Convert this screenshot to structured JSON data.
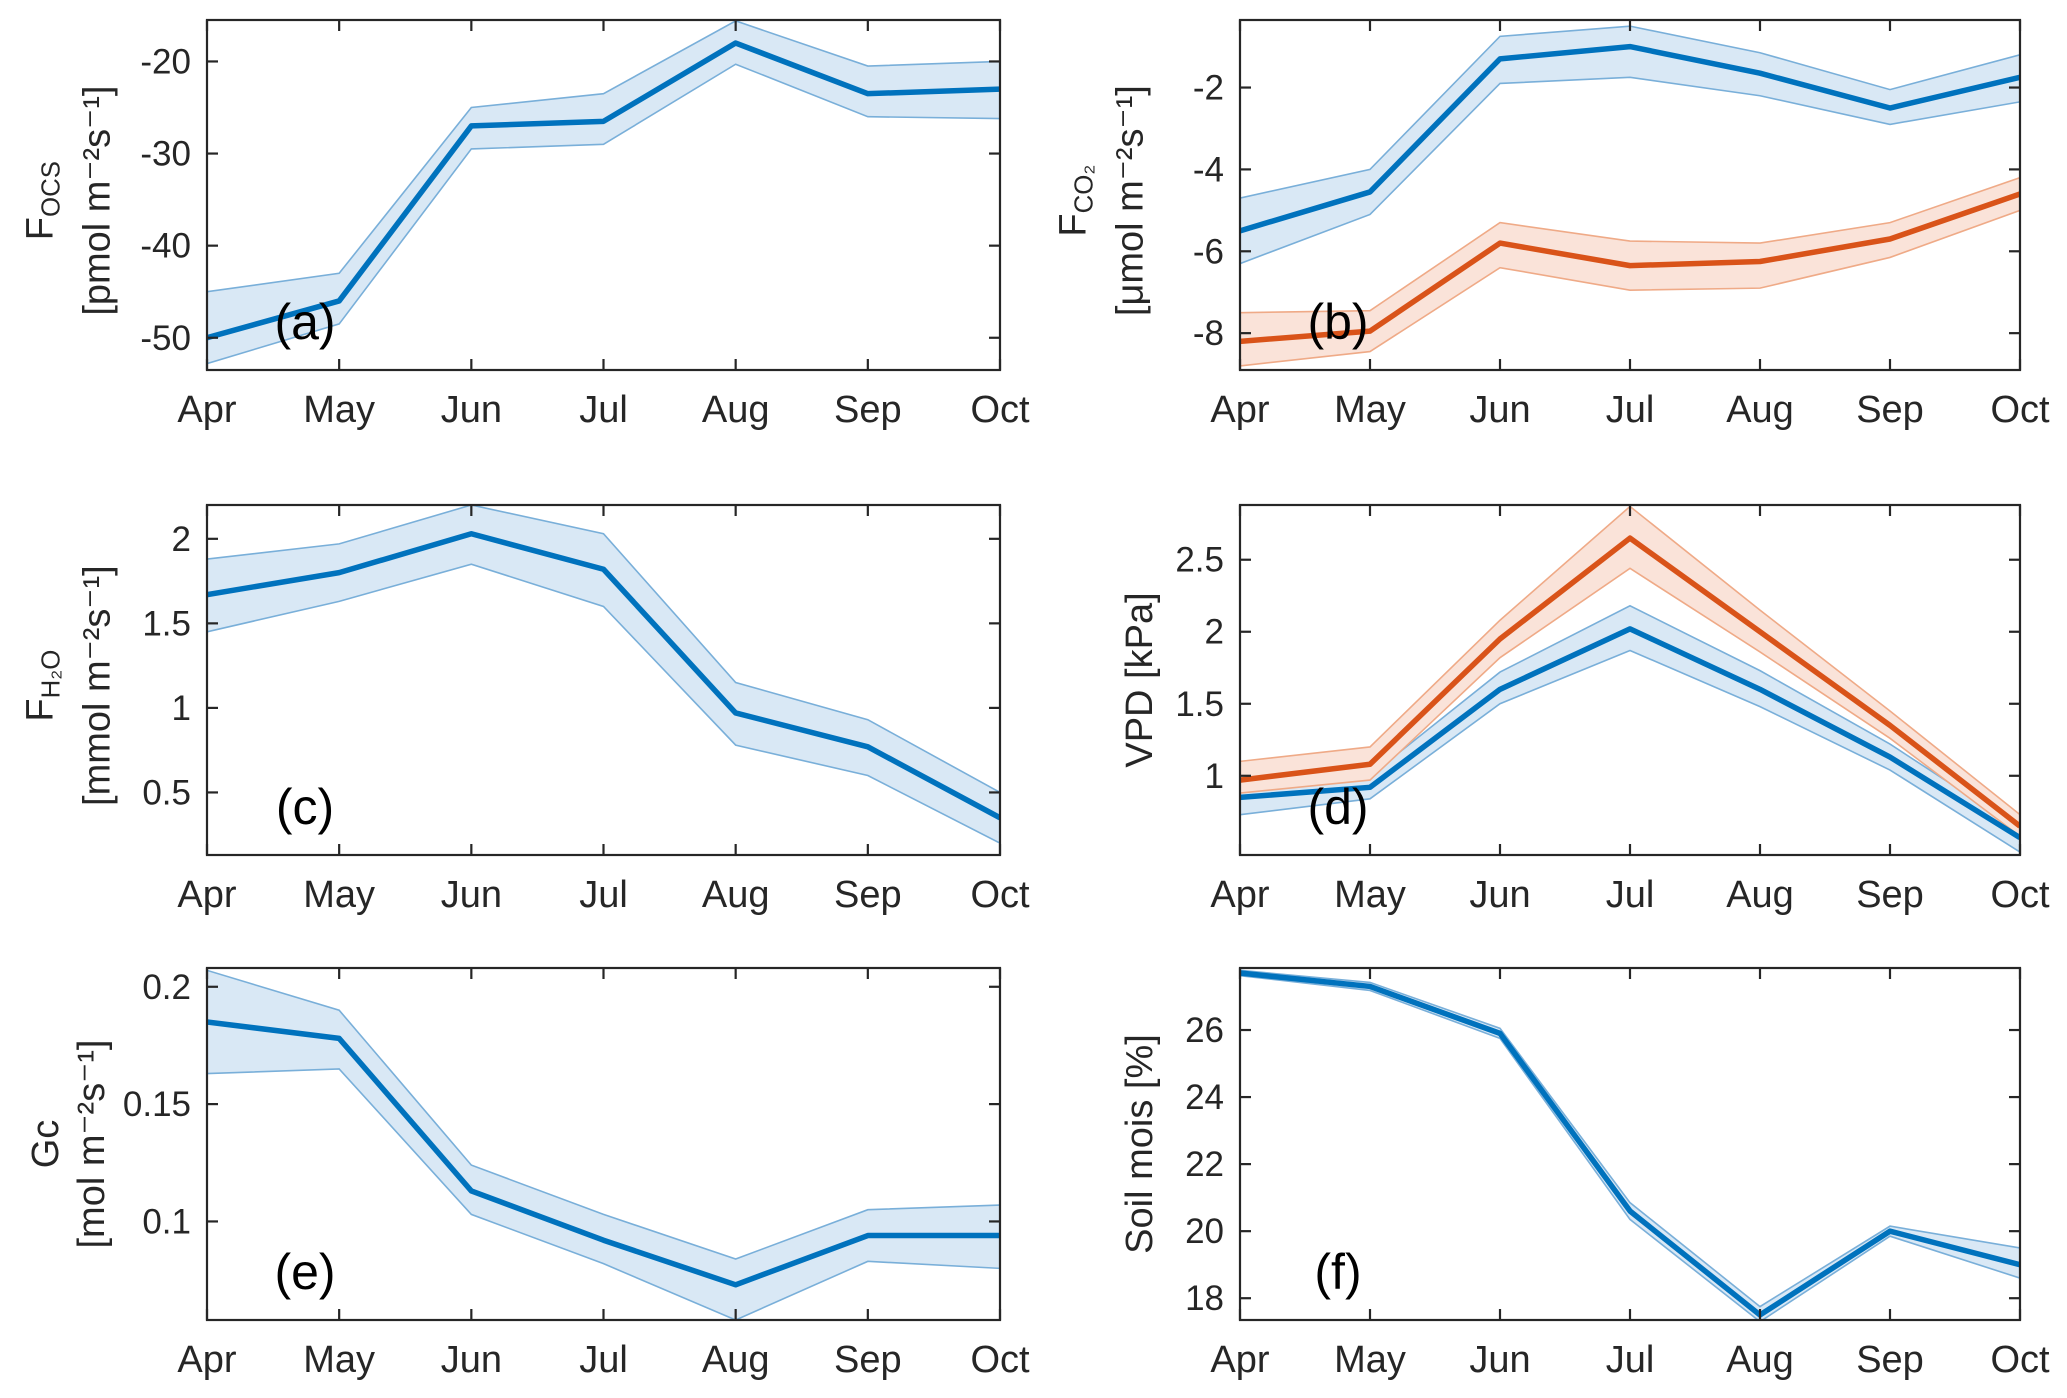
{
  "figure": {
    "type": "multi-panel-line-chart",
    "months": [
      "Apr",
      "May",
      "Jun",
      "Jul",
      "Aug",
      "Sep",
      "Oct"
    ],
    "colors": {
      "blue": "#0072BD",
      "blue_fill": "#D9E8F5",
      "blue_edge": "#79AFD9",
      "orange": "#D95319",
      "orange_fill": "#FAE3D9",
      "orange_edge": "#EFAA87",
      "axis": "#262626",
      "tick_label": "#262626"
    }
  },
  "chart_data": [
    {
      "id": "a",
      "type": "line",
      "panel_label": "(a)",
      "x": [
        "Apr",
        "May",
        "Jun",
        "Jul",
        "Aug",
        "Sep",
        "Oct"
      ],
      "ylabel_parts": [
        {
          "t": "F"
        },
        {
          "t": "OCS",
          "sub": true
        }
      ],
      "ylabel_units": "[pmol m⁻²s⁻¹]",
      "ylim": [
        -53.5,
        -15.5
      ],
      "yticks": [
        -50,
        -40,
        -30,
        -20
      ],
      "ytick_labels": [
        "-50",
        "-40",
        "-30",
        "-20"
      ],
      "series": [
        {
          "name": "series-blue",
          "color": "blue",
          "values": [
            -50,
            -46,
            -27,
            -26.5,
            -18,
            -23.5,
            -23
          ],
          "upper": [
            -45,
            -43,
            -25,
            -23.5,
            -15.6,
            -20.5,
            -20
          ],
          "lower": [
            -52.8,
            -48.5,
            -29.5,
            -29,
            -20.3,
            -26,
            -26.2
          ]
        }
      ]
    },
    {
      "id": "b",
      "type": "line",
      "panel_label": "(b)",
      "x": [
        "Apr",
        "May",
        "Jun",
        "Jul",
        "Aug",
        "Sep",
        "Oct"
      ],
      "ylabel_parts": [
        {
          "t": "F"
        },
        {
          "t": "CO₂",
          "sub": true
        }
      ],
      "ylabel_units": "[μmol m⁻²s⁻¹]",
      "ylim": [
        -8.9,
        -0.35
      ],
      "yticks": [
        -8,
        -6,
        -4,
        -2
      ],
      "ytick_labels": [
        "-8",
        "-6",
        "-4",
        "-2"
      ],
      "series": [
        {
          "name": "series-blue",
          "color": "blue",
          "values": [
            -5.5,
            -4.55,
            -1.3,
            -1.0,
            -1.65,
            -2.5,
            -1.75
          ],
          "upper": [
            -4.7,
            -4.0,
            -0.75,
            -0.5,
            -1.15,
            -2.05,
            -1.2
          ],
          "lower": [
            -6.3,
            -5.1,
            -1.9,
            -1.75,
            -2.2,
            -2.9,
            -2.35
          ]
        },
        {
          "name": "series-orange",
          "color": "orange",
          "values": [
            -8.2,
            -7.95,
            -5.8,
            -6.35,
            -6.25,
            -5.7,
            -4.6
          ],
          "upper": [
            -7.5,
            -7.45,
            -5.3,
            -5.75,
            -5.8,
            -5.3,
            -4.2
          ],
          "lower": [
            -8.8,
            -8.45,
            -6.4,
            -6.95,
            -6.9,
            -6.15,
            -5.0
          ]
        }
      ]
    },
    {
      "id": "c",
      "type": "line",
      "panel_label": "(c)",
      "x": [
        "Apr",
        "May",
        "Jun",
        "Jul",
        "Aug",
        "Sep",
        "Oct"
      ],
      "ylabel_parts": [
        {
          "t": "F"
        },
        {
          "t": "H₂O",
          "sub": true
        }
      ],
      "ylabel_units": "[mmol m⁻²s⁻¹]",
      "ylim": [
        0.13,
        2.2
      ],
      "yticks": [
        0.5,
        1,
        1.5,
        2
      ],
      "ytick_labels": [
        "0.5",
        "1",
        "1.5",
        "2"
      ],
      "series": [
        {
          "name": "series-blue",
          "color": "blue",
          "values": [
            1.67,
            1.8,
            2.03,
            1.82,
            0.97,
            0.77,
            0.35
          ],
          "upper": [
            1.88,
            1.97,
            2.2,
            2.03,
            1.15,
            0.93,
            0.5
          ],
          "lower": [
            1.45,
            1.63,
            1.85,
            1.6,
            0.78,
            0.6,
            0.2
          ]
        }
      ]
    },
    {
      "id": "d",
      "type": "line",
      "panel_label": "(d)",
      "x": [
        "Apr",
        "May",
        "Jun",
        "Jul",
        "Aug",
        "Sep",
        "Oct"
      ],
      "ylabel_parts": [
        {
          "t": "VPD [kPa]"
        }
      ],
      "ylabel_units": null,
      "ylim": [
        0.45,
        2.88
      ],
      "yticks": [
        1,
        1.5,
        2,
        2.5
      ],
      "ytick_labels": [
        "1",
        "1.5",
        "2",
        "2.5"
      ],
      "series": [
        {
          "name": "series-blue",
          "color": "blue",
          "values": [
            0.85,
            0.92,
            1.6,
            2.02,
            1.6,
            1.13,
            0.57
          ],
          "upper": [
            0.97,
            1.0,
            1.72,
            2.18,
            1.73,
            1.22,
            0.63
          ],
          "lower": [
            0.73,
            0.84,
            1.5,
            1.87,
            1.48,
            1.04,
            0.47
          ]
        },
        {
          "name": "series-orange",
          "color": "orange",
          "values": [
            0.97,
            1.08,
            1.95,
            2.65,
            2.0,
            1.35,
            0.65
          ],
          "upper": [
            1.1,
            1.2,
            2.08,
            2.87,
            2.15,
            1.45,
            0.73
          ],
          "lower": [
            0.88,
            0.97,
            1.82,
            2.44,
            1.86,
            1.26,
            0.58
          ]
        }
      ]
    },
    {
      "id": "e",
      "type": "line",
      "panel_label": "(e)",
      "x": [
        "Apr",
        "May",
        "Jun",
        "Jul",
        "Aug",
        "Sep",
        "Oct"
      ],
      "ylabel_parts": [
        {
          "t": "Gc"
        }
      ],
      "ylabel_units": "[mol m⁻²s⁻¹]",
      "ylim": [
        0.058,
        0.208
      ],
      "yticks": [
        0.1,
        0.15,
        0.2
      ],
      "ytick_labels": [
        "0.1",
        "0.15",
        "0.2"
      ],
      "series": [
        {
          "name": "series-blue",
          "color": "blue",
          "values": [
            0.185,
            0.178,
            0.113,
            0.092,
            0.073,
            0.094,
            0.094
          ],
          "upper": [
            0.207,
            0.19,
            0.124,
            0.103,
            0.084,
            0.105,
            0.107
          ],
          "lower": [
            0.163,
            0.165,
            0.103,
            0.082,
            0.058,
            0.083,
            0.08
          ]
        }
      ]
    },
    {
      "id": "f",
      "type": "line",
      "panel_label": "(f)",
      "x": [
        "Apr",
        "May",
        "Jun",
        "Jul",
        "Aug",
        "Sep",
        "Oct"
      ],
      "ylabel_parts": [
        {
          "t": "Soil mois [%]"
        }
      ],
      "ylabel_units": null,
      "ylim": [
        17.35,
        27.85
      ],
      "yticks": [
        18,
        20,
        22,
        24,
        26
      ],
      "ytick_labels": [
        "18",
        "20",
        "22",
        "24",
        "26"
      ],
      "series": [
        {
          "name": "series-blue",
          "color": "blue",
          "values": [
            27.7,
            27.3,
            25.9,
            20.6,
            17.5,
            20.0,
            19.0
          ],
          "upper": [
            27.78,
            27.42,
            26.05,
            20.85,
            17.75,
            20.15,
            19.5
          ],
          "lower": [
            27.62,
            27.18,
            25.75,
            20.35,
            17.3,
            19.85,
            18.6
          ]
        }
      ]
    }
  ]
}
